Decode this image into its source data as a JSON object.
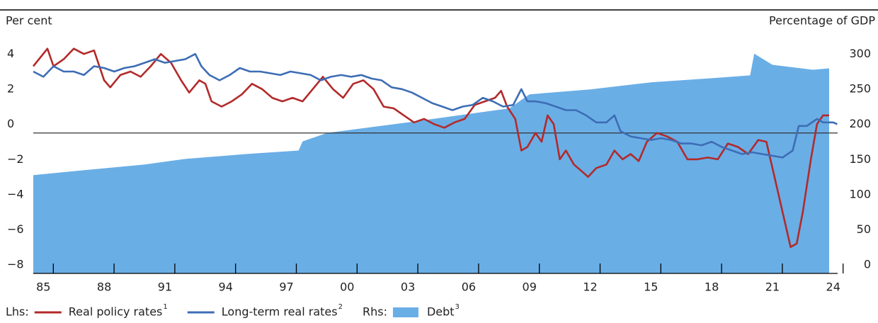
{
  "chart_data": {
    "type": "line",
    "ylabel": "Per cent",
    "y2label": "Percentage of GDP",
    "xlim": [
      1984.5,
      2024.5
    ],
    "xticks": [
      {
        "value": 1985,
        "label": "85"
      },
      {
        "value": 1988,
        "label": "88"
      },
      {
        "value": 1991,
        "label": "91"
      },
      {
        "value": 1994,
        "label": "94"
      },
      {
        "value": 1997,
        "label": "97"
      },
      {
        "value": 2000,
        "label": "00"
      },
      {
        "value": 2003,
        "label": "03"
      },
      {
        "value": 2006,
        "label": "06"
      },
      {
        "value": 2009,
        "label": "09"
      },
      {
        "value": 2012,
        "label": "12"
      },
      {
        "value": 2015,
        "label": "15"
      },
      {
        "value": 2018,
        "label": "18"
      },
      {
        "value": 2021,
        "label": "21"
      },
      {
        "value": 2024,
        "label": "24"
      }
    ],
    "ylim": [
      -8,
      6
    ],
    "yticks": [
      {
        "value": -8,
        "label": "−8"
      },
      {
        "value": -6,
        "label": "−6"
      },
      {
        "value": -4,
        "label": "−4"
      },
      {
        "value": -2,
        "label": "−2"
      },
      0,
      2,
      4
    ],
    "y2lim": [
      0,
      350
    ],
    "y2ticks": [
      0,
      50,
      100,
      150,
      200,
      250,
      300
    ],
    "hline": 0,
    "series": [
      {
        "name": "Debt",
        "footnote": "3",
        "group": "Rhs:",
        "type": "area",
        "axis": "y2",
        "color": "#6aaee6",
        "x": [
          1984.5,
          1987,
          1990,
          1992,
          1995,
          1997.6,
          1997.8,
          1999,
          2003,
          2006,
          2008,
          2009,
          2012,
          2015,
          2018,
          2019.9,
          2020.1,
          2021,
          2023,
          2023.8
        ],
        "values": [
          140,
          147,
          155,
          163,
          170,
          175,
          188,
          200,
          215,
          227,
          235,
          255,
          262,
          272,
          278,
          282,
          313,
          297,
          290,
          292
        ]
      },
      {
        "name": "Real policy rates",
        "footnote": "1",
        "group": "Lhs:",
        "type": "line",
        "color": "#b22a2a",
        "x": [
          1984.5,
          1985.2,
          1985.5,
          1986,
          1986.5,
          1987,
          1987.5,
          1988,
          1988.3,
          1988.8,
          1989.3,
          1989.8,
          1990.3,
          1990.8,
          1991.3,
          1991.8,
          1992.2,
          1992.7,
          1993,
          1993.3,
          1993.8,
          1994.3,
          1994.8,
          1995.3,
          1995.8,
          1996.3,
          1996.8,
          1997.3,
          1997.8,
          1998.3,
          1998.8,
          1999.3,
          1999.8,
          2000.3,
          2000.8,
          2001.3,
          2001.8,
          2002.3,
          2002.8,
          2003.3,
          2003.8,
          2004.3,
          2004.8,
          2005.3,
          2005.8,
          2006.3,
          2006.8,
          2007.3,
          2007.6,
          2007.9,
          2008.3,
          2008.6,
          2008.9,
          2009.3,
          2009.6,
          2009.9,
          2010.2,
          2010.5,
          2010.8,
          2011.2,
          2011.6,
          2011.9,
          2012.3,
          2012.8,
          2013.2,
          2013.6,
          2014.0,
          2014.4,
          2014.8,
          2015.3,
          2015.8,
          2016.3,
          2016.8,
          2017.3,
          2017.8,
          2018.3,
          2018.8,
          2019.3,
          2019.8,
          2020.3,
          2020.7,
          2021.1,
          2021.5,
          2021.9,
          2022.2,
          2022.5,
          2022.9,
          2023.2,
          2023.5,
          2023.8
        ],
        "values": [
          3.8,
          4.8,
          3.8,
          4.2,
          4.8,
          4.5,
          4.7,
          3.0,
          2.6,
          3.3,
          3.5,
          3.2,
          3.8,
          4.5,
          4.0,
          3.0,
          2.3,
          3.0,
          2.8,
          1.8,
          1.5,
          1.8,
          2.2,
          2.8,
          2.5,
          2.0,
          1.8,
          2.0,
          1.8,
          2.5,
          3.2,
          2.5,
          2.0,
          2.8,
          3.0,
          2.5,
          1.5,
          1.4,
          1.0,
          0.6,
          0.8,
          0.5,
          0.3,
          0.6,
          0.8,
          1.6,
          1.8,
          2.0,
          2.4,
          1.5,
          0.8,
          -1.0,
          -0.8,
          0.0,
          -0.5,
          1.0,
          0.5,
          -1.5,
          -1.0,
          -1.8,
          -2.2,
          -2.5,
          -2.0,
          -1.8,
          -1.0,
          -1.5,
          -1.2,
          -1.6,
          -0.5,
          0.0,
          -0.2,
          -0.5,
          -1.5,
          -1.5,
          -1.4,
          -1.5,
          -0.6,
          -0.8,
          -1.2,
          -0.4,
          -0.5,
          -2.5,
          -4.5,
          -6.5,
          -6.3,
          -4.5,
          -1.5,
          0.5,
          1.0,
          1.0
        ]
      },
      {
        "name": "Long-term real rates",
        "footnote": "2",
        "type": "line",
        "color": "#3d6db5",
        "x": [
          1984.5,
          1985,
          1985.5,
          1986,
          1986.5,
          1987,
          1987.5,
          1988,
          1988.5,
          1989,
          1989.5,
          1990,
          1990.5,
          1991,
          1991.5,
          1992,
          1992.5,
          1992.8,
          1993.2,
          1993.7,
          1994.2,
          1994.7,
          1995.2,
          1995.7,
          1996.2,
          1996.7,
          1997.2,
          1997.7,
          1998.2,
          1998.7,
          1999.2,
          1999.7,
          2000.2,
          2000.7,
          2001.2,
          2001.7,
          2002.2,
          2002.7,
          2003.2,
          2003.7,
          2004.2,
          2004.7,
          2005.2,
          2005.7,
          2006.2,
          2006.7,
          2007.2,
          2007.7,
          2008.2,
          2008.6,
          2008.9,
          2009.3,
          2009.8,
          2010.3,
          2010.8,
          2011.3,
          2011.8,
          2012.3,
          2012.8,
          2013.2,
          2013.5,
          2014.0,
          2014.5,
          2015.0,
          2015.5,
          2016.0,
          2016.5,
          2017.0,
          2017.5,
          2018.0,
          2018.5,
          2019.0,
          2019.5,
          2020.0,
          2020.5,
          2021.0,
          2021.5,
          2022.0,
          2022.3,
          2022.7,
          2023.2,
          2023.5,
          2024.0,
          2024.2
        ],
        "values": [
          3.5,
          3.2,
          3.8,
          3.5,
          3.5,
          3.3,
          3.8,
          3.7,
          3.5,
          3.7,
          3.8,
          4.0,
          4.2,
          4.0,
          4.1,
          4.2,
          4.5,
          3.8,
          3.3,
          3.0,
          3.3,
          3.7,
          3.5,
          3.5,
          3.4,
          3.3,
          3.5,
          3.4,
          3.3,
          3.0,
          3.2,
          3.3,
          3.2,
          3.3,
          3.1,
          3.0,
          2.6,
          2.5,
          2.3,
          2.0,
          1.7,
          1.5,
          1.3,
          1.5,
          1.6,
          2.0,
          1.8,
          1.5,
          1.6,
          2.5,
          1.8,
          1.8,
          1.7,
          1.5,
          1.3,
          1.3,
          1.0,
          0.6,
          0.6,
          1.0,
          0.1,
          -0.2,
          -0.3,
          -0.4,
          -0.3,
          -0.4,
          -0.6,
          -0.6,
          -0.7,
          -0.5,
          -0.8,
          -1.0,
          -1.2,
          -1.1,
          -1.2,
          -1.3,
          -1.4,
          -1.0,
          0.4,
          0.4,
          0.8,
          0.6,
          0.6,
          0.5
        ]
      }
    ],
    "legend_order": [
      1,
      2,
      0
    ]
  }
}
